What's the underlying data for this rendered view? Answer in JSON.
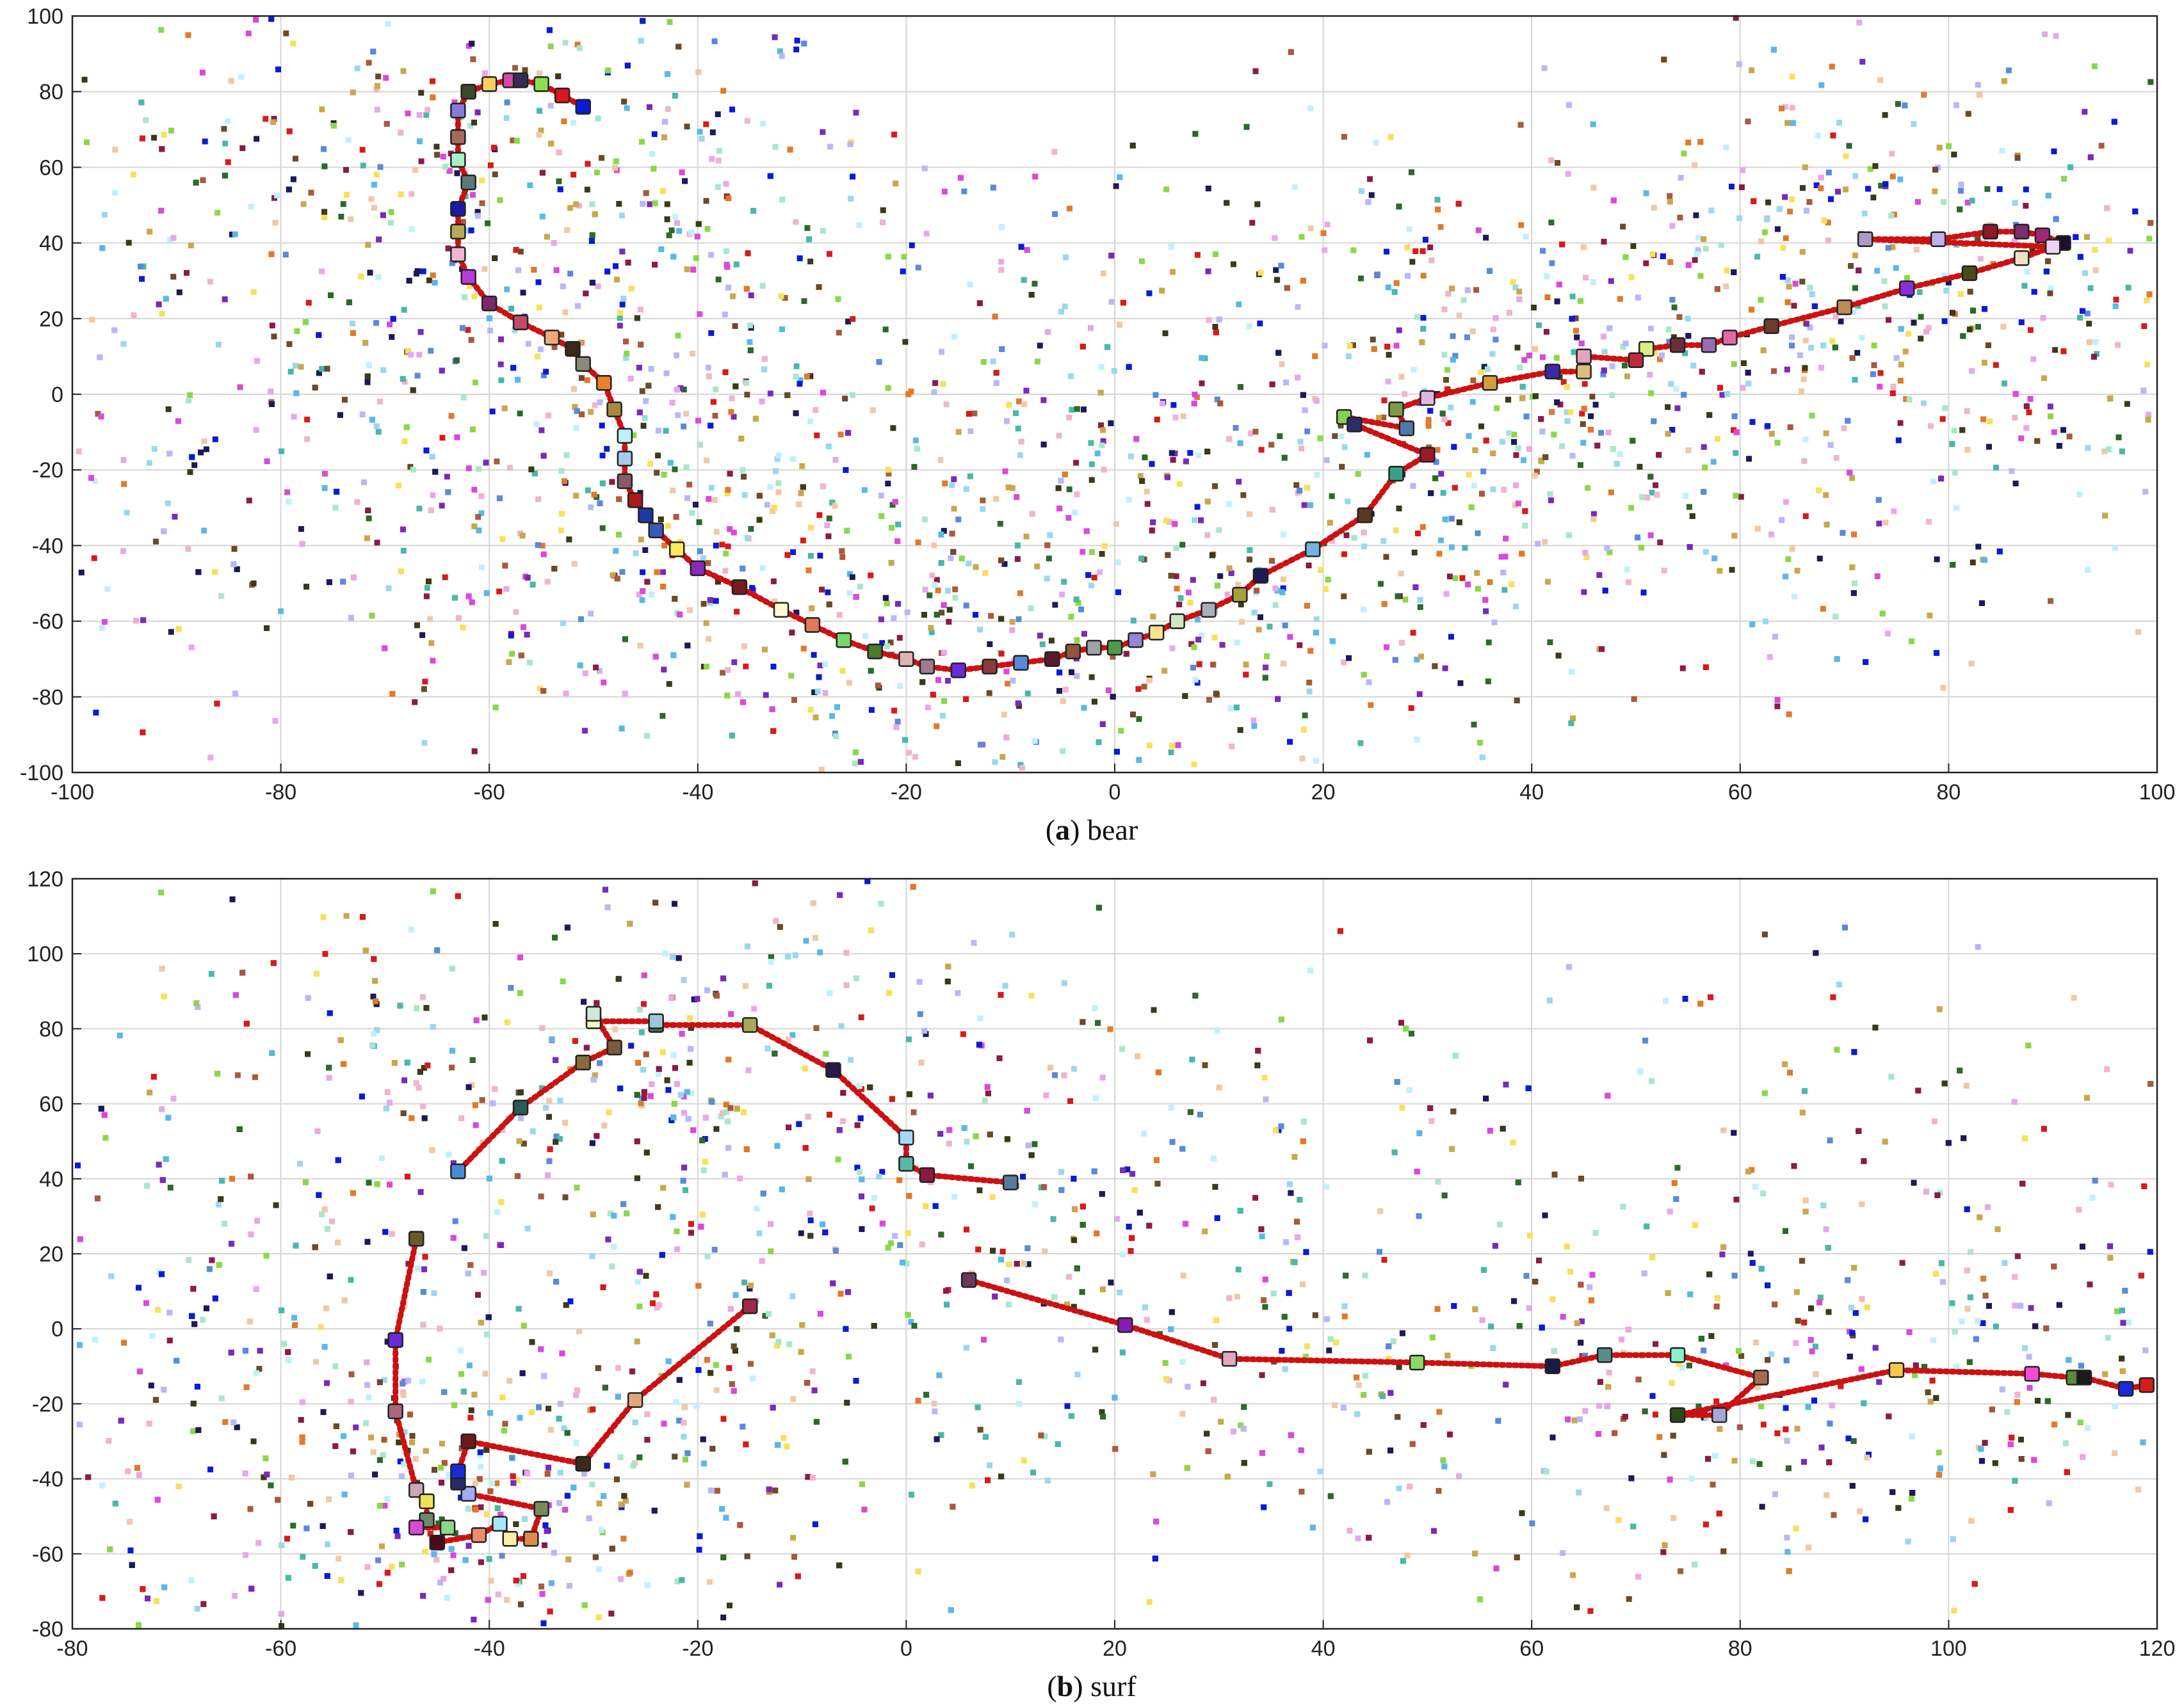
{
  "chart_data": [
    {
      "type": "scatter",
      "caption_letter": "a",
      "caption_text": "bear",
      "xlim": [
        -100,
        100
      ],
      "ylim": [
        -100,
        100
      ],
      "xticks": [
        -100,
        -80,
        -60,
        -40,
        -20,
        0,
        20,
        40,
        60,
        80,
        100
      ],
      "yticks": [
        -100,
        -80,
        -60,
        -40,
        -20,
        0,
        20,
        40,
        60,
        80,
        100
      ],
      "grid": true,
      "trajectory_color": "#cc1111",
      "background_points": "dense colored scatter of small square markers (approx. 4000 points) spread over most of the axes",
      "trajectory": [
        {
          "x": 91,
          "y": 40,
          "c": "#1a0f2e"
        },
        {
          "x": 89,
          "y": 42,
          "c": "#a0267a"
        },
        {
          "x": 87,
          "y": 43,
          "c": "#7a2f6e"
        },
        {
          "x": 84,
          "y": 43,
          "c": "#8b1a2b"
        },
        {
          "x": 79,
          "y": 41,
          "c": "#b9b2ee"
        },
        {
          "x": 72,
          "y": 41,
          "c": "#a99bc6"
        },
        {
          "x": 90,
          "y": 39,
          "c": "#e9d4f3"
        },
        {
          "x": 87,
          "y": 36,
          "c": "#efe2c4"
        },
        {
          "x": 82,
          "y": 32,
          "c": "#4a4a1a"
        },
        {
          "x": 76,
          "y": 28,
          "c": "#8b2ed8"
        },
        {
          "x": 70,
          "y": 23,
          "c": "#c08a55"
        },
        {
          "x": 63,
          "y": 18,
          "c": "#6b3b2b"
        },
        {
          "x": 59,
          "y": 15,
          "c": "#e06aa6"
        },
        {
          "x": 57,
          "y": 13,
          "c": "#9a6bb2"
        },
        {
          "x": 54,
          "y": 13,
          "c": "#6b2c3c"
        },
        {
          "x": 51,
          "y": 12,
          "c": "#d9ef85"
        },
        {
          "x": 50,
          "y": 9,
          "c": "#c22a3a"
        },
        {
          "x": 45,
          "y": 10,
          "c": "#e3a2c0"
        },
        {
          "x": 45,
          "y": 6,
          "c": "#d9bf7a"
        },
        {
          "x": 42,
          "y": 6,
          "c": "#3b2aa8"
        },
        {
          "x": 36,
          "y": 3,
          "c": "#d79a42"
        },
        {
          "x": 30,
          "y": -1,
          "c": "#e0b7e3"
        },
        {
          "x": 27,
          "y": -4,
          "c": "#7f9a47"
        },
        {
          "x": 28,
          "y": -9,
          "c": "#527aa6"
        },
        {
          "x": 22,
          "y": -6,
          "c": "#8bd04b"
        },
        {
          "x": 23,
          "y": -8,
          "c": "#2d2d6b"
        },
        {
          "x": 30,
          "y": -16,
          "c": "#9a1a2a"
        },
        {
          "x": 27,
          "y": -21,
          "c": "#3aa08a"
        },
        {
          "x": 24,
          "y": -32,
          "c": "#5a3a1a"
        },
        {
          "x": 19,
          "y": -41,
          "c": "#72b3e0"
        },
        {
          "x": 14,
          "y": -48,
          "c": "#1e1a5a"
        },
        {
          "x": 12,
          "y": -53,
          "c": "#a3a13a"
        },
        {
          "x": 9,
          "y": -57,
          "c": "#a9aeb8"
        },
        {
          "x": 6,
          "y": -60,
          "c": "#cde8c0"
        },
        {
          "x": 4,
          "y": -63,
          "c": "#ffe38a"
        },
        {
          "x": 2,
          "y": -65,
          "c": "#9a86d8"
        },
        {
          "x": 0,
          "y": -67,
          "c": "#4e9a48"
        },
        {
          "x": -2,
          "y": -67,
          "c": "#a0a2a6"
        },
        {
          "x": -4,
          "y": -68,
          "c": "#8e5a3a"
        },
        {
          "x": -6,
          "y": -70,
          "c": "#5a1a2a"
        },
        {
          "x": -9,
          "y": -71,
          "c": "#5a8ad8"
        },
        {
          "x": -12,
          "y": -72,
          "c": "#8a3a3a"
        },
        {
          "x": -15,
          "y": -73,
          "c": "#6a2ad8"
        },
        {
          "x": -18,
          "y": -72,
          "c": "#a07a8e"
        },
        {
          "x": -20,
          "y": -70,
          "c": "#e0b4b4"
        },
        {
          "x": -23,
          "y": -68,
          "c": "#4a7a2a"
        },
        {
          "x": -26,
          "y": -65,
          "c": "#7ad86a"
        },
        {
          "x": -29,
          "y": -61,
          "c": "#e07a5a"
        },
        {
          "x": -32,
          "y": -57,
          "c": "#fffad0"
        },
        {
          "x": -36,
          "y": -51,
          "c": "#7a1a1a"
        },
        {
          "x": -40,
          "y": -46,
          "c": "#8a2ab8"
        },
        {
          "x": -42,
          "y": -41,
          "c": "#ffe85a"
        },
        {
          "x": -44,
          "y": -36,
          "c": "#3a5ab8"
        },
        {
          "x": -45,
          "y": -32,
          "c": "#1a3aa8"
        },
        {
          "x": -46,
          "y": -28,
          "c": "#aa1a1a"
        },
        {
          "x": -47,
          "y": -23,
          "c": "#8a5a6a"
        },
        {
          "x": -47,
          "y": -17,
          "c": "#a8c8f0"
        },
        {
          "x": -47,
          "y": -11,
          "c": "#c0f0ff"
        },
        {
          "x": -48,
          "y": -4,
          "c": "#a88a3a"
        },
        {
          "x": -49,
          "y": 3,
          "c": "#e8822a"
        },
        {
          "x": -51,
          "y": 8,
          "c": "#8a8a7a"
        },
        {
          "x": -52,
          "y": 12,
          "c": "#3a2a1a"
        },
        {
          "x": -54,
          "y": 15,
          "c": "#f0a87a"
        },
        {
          "x": -57,
          "y": 19,
          "c": "#c04a6a"
        },
        {
          "x": -60,
          "y": 24,
          "c": "#7a2a6a"
        },
        {
          "x": -62,
          "y": 31,
          "c": "#b83ad8"
        },
        {
          "x": -63,
          "y": 37,
          "c": "#f0b4d0"
        },
        {
          "x": -63,
          "y": 43,
          "c": "#b8a85a"
        },
        {
          "x": -63,
          "y": 49,
          "c": "#1a1aa8"
        },
        {
          "x": -62,
          "y": 56,
          "c": "#5a7a7a"
        },
        {
          "x": -63,
          "y": 62,
          "c": "#a8f0c8"
        },
        {
          "x": -63,
          "y": 68,
          "c": "#a86a5a"
        },
        {
          "x": -63,
          "y": 75,
          "c": "#8a7ad8"
        },
        {
          "x": -62,
          "y": 80,
          "c": "#3a4a2a"
        },
        {
          "x": -60,
          "y": 82,
          "c": "#f8d05a"
        },
        {
          "x": -58,
          "y": 83,
          "c": "#d84aa8"
        },
        {
          "x": -57,
          "y": 83,
          "c": "#3a2a5a"
        },
        {
          "x": -55,
          "y": 82,
          "c": "#8ae04a"
        },
        {
          "x": -53,
          "y": 79,
          "c": "#d81a1a"
        },
        {
          "x": -51,
          "y": 76,
          "c": "#0a1ad8"
        }
      ]
    },
    {
      "type": "scatter",
      "caption_letter": "b",
      "caption_text": "surf",
      "xlim": [
        -80,
        120
      ],
      "ylim": [
        -80,
        120
      ],
      "xticks": [
        -80,
        -60,
        -40,
        -20,
        0,
        20,
        40,
        60,
        80,
        100,
        120
      ],
      "yticks": [
        -80,
        -60,
        -40,
        -20,
        0,
        20,
        40,
        60,
        80,
        100,
        120
      ],
      "grid": true,
      "trajectory_color": "#cc1111",
      "background_points": "dense colored scatter of small square markers (approx. 4000 points) spread over most of the axes",
      "trajectory": [
        {
          "x": 10,
          "y": 39,
          "c": "#5a7a9a"
        },
        {
          "x": 2,
          "y": 41,
          "c": "#8a1a3a"
        },
        {
          "x": 0,
          "y": 44,
          "c": "#5ab8a8"
        },
        {
          "x": 0,
          "y": 51,
          "c": "#a8d8f8"
        },
        {
          "x": -7,
          "y": 69,
          "c": "#2a1a4a"
        },
        {
          "x": -15,
          "y": 81,
          "c": "#a8a85a"
        },
        {
          "x": -24,
          "y": 81,
          "c": "#4a6a4a"
        },
        {
          "x": -24,
          "y": 82,
          "c": "#9ac8d8"
        },
        {
          "x": -30,
          "y": 82,
          "c": "#f0f8c0"
        },
        {
          "x": -30,
          "y": 84,
          "c": "#d0e8d8"
        },
        {
          "x": -28,
          "y": 75,
          "c": "#7a5a3a"
        },
        {
          "x": -31,
          "y": 71,
          "c": "#8a6a3a"
        },
        {
          "x": -37,
          "y": 59,
          "c": "#2a5a5a"
        },
        {
          "x": -43,
          "y": 42,
          "c": "#4a8ad8"
        },
        {
          "x": -47,
          "y": 24,
          "c": "#6a5a2a"
        },
        {
          "x": -49,
          "y": -3,
          "c": "#6a2ad8"
        },
        {
          "x": -49,
          "y": -22,
          "c": "#a86a7a"
        },
        {
          "x": -47,
          "y": -43,
          "c": "#c8a8b8"
        },
        {
          "x": -46,
          "y": -46,
          "c": "#f0e05a"
        },
        {
          "x": -46,
          "y": -51,
          "c": "#6a8a6a"
        },
        {
          "x": -47,
          "y": -53,
          "c": "#d84ad8"
        },
        {
          "x": -44,
          "y": -53,
          "c": "#8ad88a"
        },
        {
          "x": -45,
          "y": -57,
          "c": "#4a0a1a"
        },
        {
          "x": -41,
          "y": -55,
          "c": "#f08a6a"
        },
        {
          "x": -39,
          "y": -52,
          "c": "#a8e8f8"
        },
        {
          "x": -38,
          "y": -56,
          "c": "#f8f0a8"
        },
        {
          "x": -36,
          "y": -56,
          "c": "#e08a4a"
        },
        {
          "x": -35,
          "y": -48,
          "c": "#7a8a5a"
        },
        {
          "x": -42,
          "y": -44,
          "c": "#a8a8f8"
        },
        {
          "x": -43,
          "y": -41,
          "c": "#2a2a6a"
        },
        {
          "x": -43,
          "y": -38,
          "c": "#1a2ad8"
        },
        {
          "x": -42,
          "y": -30,
          "c": "#6a1a1a"
        },
        {
          "x": -31,
          "y": -36,
          "c": "#3a2a1a"
        },
        {
          "x": -26,
          "y": -19,
          "c": "#e0a87a"
        },
        {
          "x": -15,
          "y": 6,
          "c": "#a02a4a"
        },
        {
          "x": 6,
          "y": 13,
          "c": "#6a3a5a"
        },
        {
          "x": 21,
          "y": 1,
          "c": "#8a1ab8"
        },
        {
          "x": 31,
          "y": -8,
          "c": "#e0a8c0"
        },
        {
          "x": 49,
          "y": -9,
          "c": "#8ad86a"
        },
        {
          "x": 62,
          "y": -10,
          "c": "#1a1a4a"
        },
        {
          "x": 67,
          "y": -7,
          "c": "#5a8a8a"
        },
        {
          "x": 74,
          "y": -7,
          "c": "#8af0c8"
        },
        {
          "x": 82,
          "y": -13,
          "c": "#a86a4a"
        },
        {
          "x": 78,
          "y": -23,
          "c": "#a8a8d8"
        },
        {
          "x": 74,
          "y": -23,
          "c": "#2a4a1a"
        },
        {
          "x": 95,
          "y": -11,
          "c": "#f8c84a"
        },
        {
          "x": 108,
          "y": -12,
          "c": "#f84ad8"
        },
        {
          "x": 112,
          "y": -13,
          "c": "#5a8a3a"
        },
        {
          "x": 113,
          "y": -13,
          "c": "#1a1a1a"
        },
        {
          "x": 117,
          "y": -16,
          "c": "#1a2ad8"
        },
        {
          "x": 119,
          "y": -15,
          "c": "#d81a1a"
        }
      ],
      "trajectory_segments": [
        [
          0,
          14
        ],
        [
          14,
          35
        ],
        [
          35,
          51
        ]
      ]
    }
  ]
}
